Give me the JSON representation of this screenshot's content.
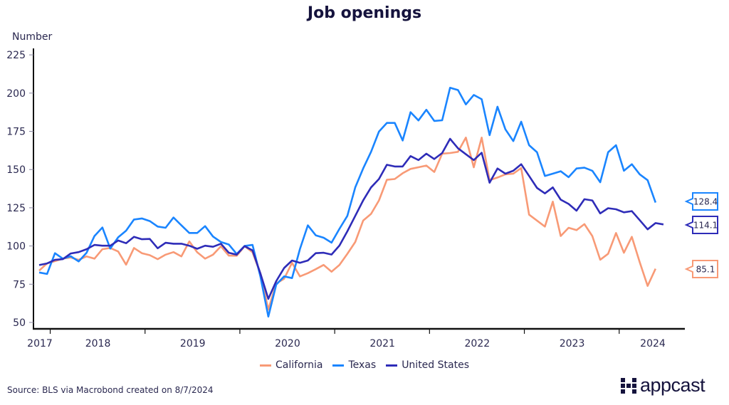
{
  "title": "Job openings",
  "source": "Source: BLS via Macrobond created on 8/7/2024",
  "logo_text": "appcast",
  "chart_data": {
    "type": "line",
    "title": "Job openings",
    "ylabel": "Number",
    "xlabel": "",
    "ylim": [
      50,
      225
    ],
    "yticks": [
      50,
      75,
      100,
      125,
      150,
      175,
      200,
      225
    ],
    "xticks": [
      "2017",
      "2018",
      "2019",
      "2020",
      "2021",
      "2022",
      "2023",
      "2024"
    ],
    "x_start": "2017-11",
    "frequency": "monthly",
    "grid": false,
    "legend_position": "bottom",
    "series": [
      {
        "name": "California",
        "color": "#f89a76",
        "end_label": "85.1",
        "values": [
          83.9,
          88.6,
          90.1,
          91.7,
          92.5,
          90.9,
          93.2,
          91.7,
          97.9,
          98.7,
          96.4,
          87.8,
          98.7,
          95.3,
          94.0,
          91.4,
          94.3,
          96.0,
          93.2,
          103.0,
          95.9,
          91.7,
          94.3,
          99.8,
          93.7,
          93.6,
          99.9,
          95.9,
          82,
          58.4,
          75.5,
          78.6,
          89,
          80.1,
          82.2,
          84.8,
          87.6,
          83.2,
          87.6,
          94.9,
          102.6,
          116.6,
          121,
          129.8,
          143.3,
          143.8,
          147.6,
          150.4,
          151.5,
          152.6,
          148.4,
          160.4,
          160.8,
          161.6,
          170.9,
          151.5,
          170.9,
          143,
          144.8,
          146.9,
          147.3,
          151,
          120.5,
          116.6,
          112.7,
          129,
          106.5,
          111.9,
          110.4,
          114.3,
          106.5,
          91,
          94.9,
          108.5,
          95.6,
          106,
          89.4,
          73.9,
          85.1
        ]
      },
      {
        "name": "Texas",
        "color": "#1a85ff",
        "end_label": "128.4",
        "values": [
          82.7,
          81.7,
          95.3,
          91.7,
          93.3,
          89.9,
          95.6,
          106.5,
          112.1,
          98.3,
          105.7,
          110,
          117.3,
          118,
          116.3,
          112.7,
          111.9,
          118.6,
          113.5,
          108.5,
          108.5,
          113,
          106.2,
          102.6,
          101,
          94.8,
          100,
          100.7,
          80,
          53.8,
          74.7,
          80.1,
          79.0,
          98,
          113.5,
          107,
          105.4,
          102.2,
          111.2,
          119.7,
          138.3,
          150.7,
          161.6,
          174.8,
          180.5,
          180.5,
          169,
          187.5,
          182.1,
          189.1,
          181.8,
          182.2,
          203.5,
          202,
          192.6,
          198.8,
          196,
          172.5,
          191.1,
          176.3,
          168.6,
          181.3,
          165.9,
          161.3,
          145.8,
          147.3,
          148.9,
          145,
          150.7,
          151.2,
          149.2,
          141.7,
          161.3,
          165.9,
          149.2,
          153.5,
          146.9,
          143,
          128.4
        ]
      },
      {
        "name": "United States",
        "color": "#2e2cb8",
        "end_label": "114.1",
        "values": [
          87.5,
          88.6,
          90.9,
          91.4,
          95.1,
          96.0,
          97.9,
          100.7,
          100.2,
          100.2,
          103.6,
          101.8,
          106.0,
          104.4,
          104.6,
          98.5,
          102.1,
          101.5,
          101.5,
          100.2,
          98.2,
          100.2,
          99.5,
          101.5,
          95.6,
          94.3,
          99.9,
          97.1,
          82,
          65.4,
          77,
          85.6,
          90.5,
          89,
          90.5,
          95.3,
          95.6,
          94.4,
          100.3,
          109.6,
          119.7,
          129.8,
          138.3,
          143.8,
          153.1,
          152,
          152,
          158.8,
          156.2,
          160.4,
          156.9,
          160.8,
          170.1,
          163.9,
          160,
          156.2,
          161,
          141.4,
          150.7,
          147.3,
          149.2,
          153.5,
          145.8,
          138,
          134.4,
          138.3,
          130.3,
          127.5,
          123.1,
          130.6,
          129.8,
          121.3,
          124.7,
          124,
          122,
          122.8,
          116.9,
          110.9,
          115,
          114.1
        ]
      }
    ]
  }
}
